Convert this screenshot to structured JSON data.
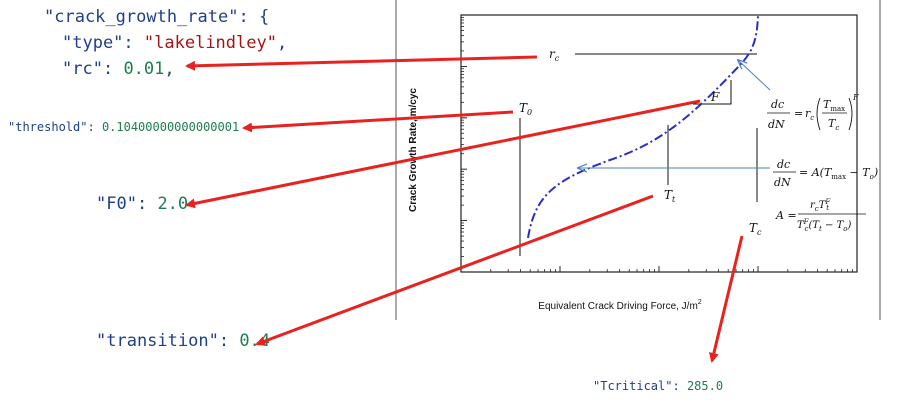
{
  "json_text": {
    "line1_key": "\"crack_growth_rate\"",
    "line1_rest": ": {",
    "type_key": "\"type\"",
    "type_sep": ": ",
    "type_value": "\"lakelindley\"",
    "type_comma": ",",
    "rc_key": "\"rc\"",
    "rc_sep": ": ",
    "rc_value": "0.01",
    "rc_comma": ",",
    "threshold_key": "\"threshold\"",
    "threshold_sep": ": ",
    "threshold_value": "0.10400000000000001",
    "f0_key": "\"F0\"",
    "f0_sep": ": ",
    "f0_value": "2.0",
    "transition_key": "\"transition\"",
    "transition_sep": ": ",
    "transition_value": "0.4",
    "tcritical_key": "\"Tcritical\"",
    "tcritical_sep": ": ",
    "tcritical_value": "285.0"
  },
  "diagram": {
    "y_axis_label": "Crack Growth Rate, m/cyc",
    "x_axis_label": "Equivalent Crack Driving Force, J/m",
    "x_axis_label_sup": "2",
    "labels": {
      "rc": "r",
      "rc_sub": "c",
      "t0": "T",
      "t0_sub": "0",
      "f": "F",
      "tt": "T",
      "tt_sub": "t",
      "tc": "T",
      "tc_sub": "c"
    },
    "eq1": {
      "lhs_num": "dc",
      "lhs_den": "dN",
      "equals": "=",
      "r": "r",
      "r_sub": "c",
      "tmax": "T",
      "tmax_sub": "max",
      "tc": "T",
      "tc_sub": "c",
      "exp": "F"
    },
    "eq2": {
      "lhs_num": "dc",
      "lhs_den": "dN",
      "rhs": "= A(T",
      "rhs_sub1": "max",
      "rhs_mid": " − T",
      "rhs_sub2": "o",
      "rhs_end": ")"
    },
    "eq3": {
      "lhs": "A =",
      "num": "r",
      "num_sub": "c",
      "num_t": "T",
      "num_t_sub": "t",
      "num_exp": "F",
      "den_t": "T",
      "den_t_sub": "c",
      "den_exp": "F",
      "den_rest": "(T",
      "den_rest_sub1": "t",
      "den_mid": " − T",
      "den_rest_sub2": "o",
      "den_end": ")"
    }
  },
  "colors": {
    "arrow": "#e8231f",
    "curve": "#2a2fc4",
    "leader": "#4a7fc0",
    "key": "#1f3f8a",
    "string": "#a31515",
    "number": "#1e7d4f"
  }
}
